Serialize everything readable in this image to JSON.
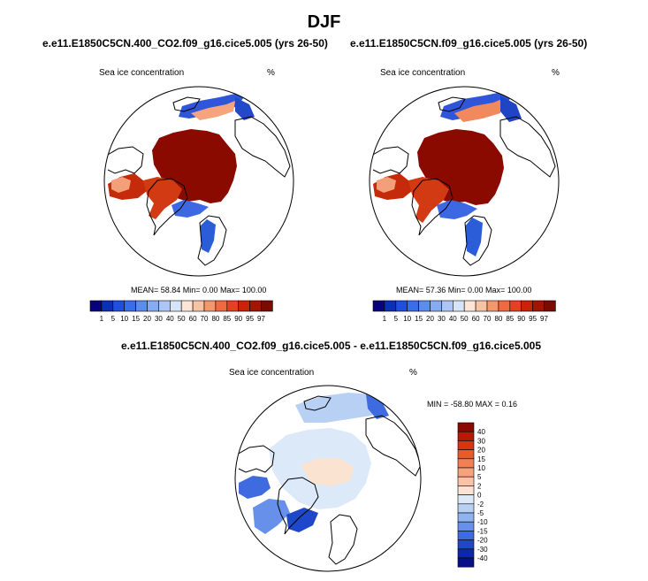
{
  "page": {
    "title": "DJF"
  },
  "colors": {
    "land_outline": "#000000",
    "ocean": "#ffffff",
    "ice_full": "#8b0a00"
  },
  "panels": [
    {
      "title": "e.e11.E1850C5CN.400_CO2.f09_g16.cice5.005 (yrs 26-50)",
      "variable": "Sea ice concentration",
      "units": "%",
      "stats": "MEAN=  58.84  Min=   0.00  Max= 100.00"
    },
    {
      "title": "e.e11.E1850C5CN.f09_g16.cice5.005 (yrs 26-50)",
      "variable": "Sea ice concentration",
      "units": "%",
      "stats": "MEAN=  57.36  Min=   0.00  Max= 100.00"
    },
    {
      "title": "e.e11.E1850C5CN.400_CO2.f09_g16.cice5.005 - e.e11.E1850C5CN.f09_g16.cice5.005",
      "variable": "Sea ice concentration",
      "units": "%",
      "stats": "MIN = -58.80 MAX =   0.16"
    }
  ],
  "chart_data": [
    {
      "type": "heatmap",
      "projection": "north-polar-stereographic",
      "title": "e.e11.E1850C5CN.400_CO2.f09_g16.cice5.005 (yrs 26-50)",
      "variable": "Sea ice concentration",
      "units": "%",
      "stats": {
        "mean": 58.84,
        "min": 0.0,
        "max": 100.0
      },
      "colorbar": {
        "orientation": "horizontal",
        "levels": [
          "1",
          "5",
          "10",
          "15",
          "20",
          "30",
          "40",
          "50",
          "60",
          "70",
          "80",
          "85",
          "90",
          "95",
          "97"
        ],
        "colors": [
          "#08037c",
          "#0b2fb5",
          "#1f4fdc",
          "#3a6ee8",
          "#5b8df0",
          "#86aaf3",
          "#aec6f5",
          "#d5e4f8",
          "#fde5d5",
          "#f8c2a4",
          "#f4976d",
          "#ee6a41",
          "#e3411f",
          "#c92308",
          "#a31402",
          "#7d0a00"
        ]
      }
    },
    {
      "type": "heatmap",
      "projection": "north-polar-stereographic",
      "title": "e.e11.E1850C5CN.f09_g16.cice5.005 (yrs 26-50)",
      "variable": "Sea ice concentration",
      "units": "%",
      "stats": {
        "mean": 57.36,
        "min": 0.0,
        "max": 100.0
      },
      "colorbar": {
        "orientation": "horizontal",
        "levels": [
          "1",
          "5",
          "10",
          "15",
          "20",
          "30",
          "40",
          "50",
          "60",
          "70",
          "80",
          "85",
          "90",
          "95",
          "97"
        ],
        "colors": [
          "#08037c",
          "#0b2fb5",
          "#1f4fdc",
          "#3a6ee8",
          "#5b8df0",
          "#86aaf3",
          "#aec6f5",
          "#d5e4f8",
          "#fde5d5",
          "#f8c2a4",
          "#f4976d",
          "#ee6a41",
          "#e3411f",
          "#c92308",
          "#a31402",
          "#7d0a00"
        ]
      }
    },
    {
      "type": "heatmap",
      "projection": "north-polar-stereographic",
      "title": "e.e11.E1850C5CN.400_CO2.f09_g16.cice5.005 - e.e11.E1850C5CN.f09_g16.cice5.005",
      "variable": "Sea ice concentration",
      "units": "%",
      "stats": {
        "min": -58.8,
        "max": 0.16
      },
      "colorbar": {
        "orientation": "vertical",
        "levels": [
          "40",
          "30",
          "20",
          "15",
          "10",
          "5",
          "2",
          "0",
          "-2",
          "-5",
          "-10",
          "-15",
          "-20",
          "-30",
          "-40"
        ],
        "colors": [
          "#8b0a00",
          "#b61a04",
          "#d63510",
          "#ec5a2c",
          "#f47f52",
          "#f7a27c",
          "#f9c4a6",
          "#fbe3d2",
          "#dce9f8",
          "#b9d0f5",
          "#8fb2f1",
          "#6690ea",
          "#3e6bdf",
          "#1e47c9",
          "#0b28a8",
          "#061188"
        ]
      }
    }
  ]
}
